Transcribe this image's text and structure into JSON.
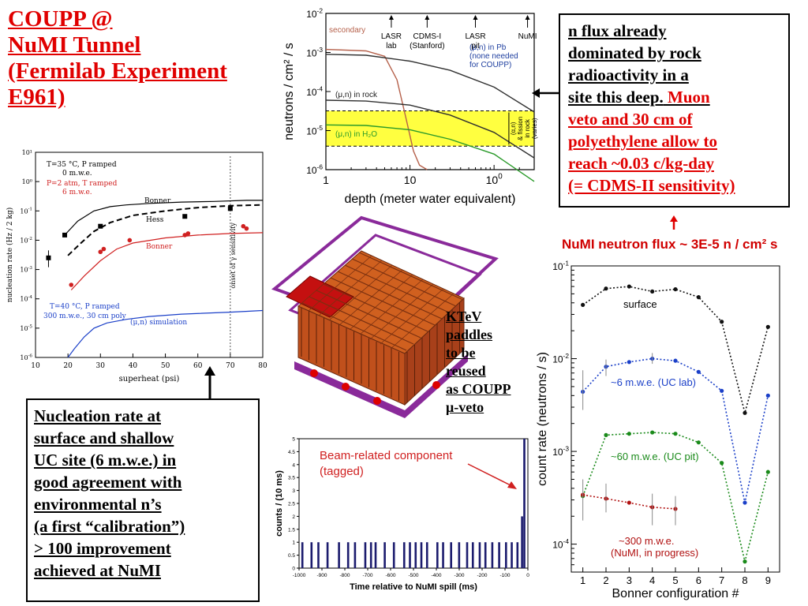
{
  "title": {
    "lines": [
      "COUPP @",
      "NuMI Tunnel",
      "(Fermilab Experiment",
      "E961)"
    ]
  },
  "top_right_box": {
    "black": [
      "n flux already",
      "dominated by rock",
      "radioactivity in a",
      "site this deep."
    ],
    "red_inline": "Muon",
    "red": [
      "veto and 30 cm of",
      "polyethylene allow to",
      "reach ~0.03 c/kg-day",
      "(= CDMS-II sensitivity)"
    ]
  },
  "bottom_left_box": {
    "lines": [
      "Nucleation rate at",
      "surface and shallow",
      "UC site (6 m.w.e.) in",
      "good agreement with",
      "environmental n’s",
      "(a first “calibration”)",
      "> 100 improvement",
      "achieved at NuMI"
    ]
  },
  "ktev_label": {
    "lines": [
      "KTeV",
      "paddles",
      "to be",
      "reused",
      "as COUPP",
      "μ-veto"
    ]
  },
  "numi_flux_title": "NuMI neutron flux ~ 3E-5 n / cm² s",
  "colors": {
    "title_red": "#e00000",
    "blue": "#1a3fc8",
    "green": "#1a8a1a",
    "darkred": "#b01010",
    "yellow": "#ffff40",
    "navy": "#1c1c6e"
  },
  "chart_data": [
    {
      "type": "line",
      "id": "depth",
      "xlabel": "depth (meter water equivalent)",
      "ylabel": "neutrons / cm² / s",
      "x_scale": "log",
      "y_scale": "log",
      "xlim": [
        1,
        300
      ],
      "ylim": [
        1e-06,
        0.01
      ],
      "x_ticks": [
        "1",
        "10",
        "100"
      ],
      "y_ticks": [
        "10-6",
        "10-5",
        "10-4",
        "10-3",
        "10-2"
      ],
      "band": {
        "from": 4e-06,
        "to": 3.2e-05
      },
      "markers": [
        {
          "label": "LASR lab",
          "lines": [
            "LASR",
            "lab"
          ],
          "x": 6
        },
        {
          "label": "CDMS-I (Stanford)",
          "lines": [
            "CDMS-I",
            "(Stanford)"
          ],
          "x": 16
        },
        {
          "label": "LASR pit",
          "lines": [
            "LASR",
            "pit"
          ],
          "x": 60
        },
        {
          "label": "NuMI",
          "lines": [
            "NuMI"
          ],
          "x": 250
        }
      ],
      "series": [
        {
          "name": "secondary",
          "color": "#b5604a",
          "x": [
            1,
            3,
            5,
            7,
            9,
            11,
            13,
            16
          ],
          "y": [
            0.0012,
            0.0011,
            0.0008,
            0.0002,
            2e-05,
            3e-06,
            1.3e-06,
            1e-06
          ]
        },
        {
          "name": "(μ,n) in Pb (none needed for COUPP)",
          "label_lines": [
            "(μ,n) in Pb",
            "(none needed",
            "for COUPP)"
          ],
          "color": "#303030",
          "x": [
            1,
            3,
            10,
            30,
            100,
            300
          ],
          "y": [
            0.0009,
            0.00085,
            0.0006,
            0.00035,
            0.00013,
            3e-05
          ]
        },
        {
          "name": "(μ,n) in rock",
          "color": "#303030",
          "x": [
            1,
            3,
            10,
            30,
            100,
            300
          ],
          "y": [
            6e-05,
            5.7e-05,
            4.5e-05,
            2.5e-05,
            9e-06,
            2e-06
          ]
        },
        {
          "name": "(μ,n) in H₂O",
          "color": "#2a9a2a",
          "x": [
            1,
            3,
            10,
            30,
            100,
            300
          ],
          "y": [
            1.4e-05,
            1.35e-05,
            1.05e-05,
            6e-06,
            2.5e-06,
            5e-07
          ]
        }
      ],
      "band_label": [
        "(α,n)",
        "& fission",
        "in rock",
        "(varies)"
      ]
    },
    {
      "type": "scatter",
      "id": "nucleation",
      "xlabel": "superheat (psi)",
      "ylabel": "nucleation rate (Hz / 2 kg)",
      "y_scale": "log",
      "xlim": [
        10,
        80
      ],
      "ylim": [
        1e-06,
        10
      ],
      "x_ticks": [
        "10",
        "20",
        "30",
        "40",
        "50",
        "60",
        "70",
        "80"
      ],
      "y_ticks": [
        "10-6",
        "10-5",
        "10-4",
        "10-3",
        "10-2",
        "10-1",
        "10⁰",
        "10¹"
      ],
      "vline": {
        "x": 70,
        "label": "onset of γ sensitivity"
      },
      "notes": {
        "black": [
          "T=35 °C, P ramped",
          "0 m.w.e."
        ],
        "red": [
          "P=2 atm, T ramped",
          "6 m.w.e."
        ],
        "blue": [
          "T=40 °C, P ramped",
          "300 m.w.e., 30 cm poly"
        ]
      },
      "series": [
        {
          "name": "Bonner",
          "color": "#000000",
          "style": "solid",
          "x": [
            19,
            23,
            28,
            33,
            38,
            45,
            55,
            65,
            75,
            80
          ],
          "y": [
            0.015,
            0.045,
            0.1,
            0.14,
            0.16,
            0.18,
            0.2,
            0.21,
            0.23,
            0.23
          ]
        },
        {
          "name": "Hess",
          "color": "#000000",
          "style": "dashed",
          "x": [
            20,
            24,
            28,
            33,
            40,
            50,
            60,
            70,
            80
          ],
          "y": [
            0.003,
            0.008,
            0.02,
            0.04,
            0.07,
            0.1,
            0.13,
            0.15,
            0.16
          ]
        },
        {
          "name": "Bonner",
          "color": "#d02020",
          "style": "solid",
          "x": [
            21,
            25,
            30,
            35,
            40,
            50,
            60,
            70,
            80
          ],
          "y": [
            0.0002,
            0.0006,
            0.002,
            0.005,
            0.008,
            0.012,
            0.015,
            0.017,
            0.018
          ]
        },
        {
          "name": "(μ,n) simulation",
          "color": "#1a3fc8",
          "style": "solid",
          "x": [
            20,
            22,
            25,
            28,
            32,
            38,
            45,
            55,
            70,
            80
          ],
          "y": [
            1e-06,
            2e-06,
            5e-06,
            1e-05,
            1.5e-05,
            2e-05,
            2.5e-05,
            3e-05,
            3.5e-05,
            4e-05
          ]
        },
        {
          "name": "0 m.w.e. data",
          "color": "#000000",
          "points": [
            [
              14,
              0.0025
            ],
            [
              19,
              0.015
            ],
            [
              30,
              0.03
            ],
            [
              56,
              0.065
            ],
            [
              70,
              0.12
            ]
          ]
        },
        {
          "name": "6 m.w.e. data",
          "color": "#d02020",
          "points": [
            [
              21,
              0.0003
            ],
            [
              30,
              0.004
            ],
            [
              31,
              0.005
            ],
            [
              39,
              0.01
            ],
            [
              56,
              0.015
            ],
            [
              57,
              0.017
            ],
            [
              74,
              0.03
            ],
            [
              75,
              0.025
            ]
          ]
        }
      ]
    },
    {
      "type": "bar",
      "id": "timing",
      "xlabel": "Time relative to NuMI spill (ms)",
      "ylabel": "counts / (10 ms)",
      "xlim": [
        -1000,
        0
      ],
      "ylim": [
        0,
        5
      ],
      "x_ticks": [
        "-1000",
        "-900",
        "-800",
        "-700",
        "-600",
        "-500",
        "-400",
        "-300",
        "-200",
        "-100",
        "0"
      ],
      "y_ticks": [
        "0",
        "0.5",
        "1",
        "1.5",
        "2",
        "2.5",
        "3",
        "3.5",
        "4",
        "4.5",
        "5"
      ],
      "annotation": [
        "Beam-related component",
        "(tagged)"
      ],
      "bins": [
        {
          "x": -990,
          "y": 1
        },
        {
          "x": -950,
          "y": 1
        },
        {
          "x": -920,
          "y": 1
        },
        {
          "x": -880,
          "y": 1
        },
        {
          "x": -830,
          "y": 1
        },
        {
          "x": -790,
          "y": 1
        },
        {
          "x": -760,
          "y": 1
        },
        {
          "x": -715,
          "y": 1
        },
        {
          "x": -690,
          "y": 1
        },
        {
          "x": -670,
          "y": 1
        },
        {
          "x": -630,
          "y": 1
        },
        {
          "x": -590,
          "y": 1
        },
        {
          "x": -545,
          "y": 1
        },
        {
          "x": -520,
          "y": 1
        },
        {
          "x": -495,
          "y": 1
        },
        {
          "x": -470,
          "y": 1
        },
        {
          "x": -445,
          "y": 1
        },
        {
          "x": -400,
          "y": 1
        },
        {
          "x": -375,
          "y": 1
        },
        {
          "x": -340,
          "y": 1
        },
        {
          "x": -305,
          "y": 1
        },
        {
          "x": -270,
          "y": 1
        },
        {
          "x": -245,
          "y": 1
        },
        {
          "x": -215,
          "y": 1
        },
        {
          "x": -190,
          "y": 1
        },
        {
          "x": -160,
          "y": 1
        },
        {
          "x": -130,
          "y": 1
        },
        {
          "x": -100,
          "y": 1
        },
        {
          "x": -75,
          "y": 1
        },
        {
          "x": -50,
          "y": 1
        },
        {
          "x": -30,
          "y": 2
        },
        {
          "x": -20,
          "y": 5
        }
      ]
    },
    {
      "type": "line",
      "id": "bonner",
      "xlabel": "Bonner configuration #",
      "ylabel": "count rate (neutrons / s)",
      "y_scale": "log",
      "xlim": [
        0.5,
        9.5
      ],
      "ylim": [
        5e-05,
        0.1
      ],
      "x_ticks": [
        "1",
        "2",
        "3",
        "4",
        "5",
        "6",
        "7",
        "8",
        "9"
      ],
      "y_ticks": [
        "10-4",
        "10-3",
        "10-2",
        "10-1"
      ],
      "series": [
        {
          "name": "surface",
          "color": "#111111",
          "x": [
            1,
            2,
            3,
            4,
            5,
            6,
            7,
            8,
            9
          ],
          "y": [
            0.038,
            0.057,
            0.06,
            0.053,
            0.056,
            0.046,
            0.025,
            0.0026,
            0.022
          ]
        },
        {
          "name": "~6 m.w.e. (UC lab)",
          "color": "#1a3fc8",
          "x": [
            1,
            2,
            3,
            4,
            5,
            6,
            7,
            8,
            9
          ],
          "y": [
            0.0044,
            0.0082,
            0.0092,
            0.01,
            0.0095,
            0.0072,
            0.0045,
            0.00028,
            0.004
          ]
        },
        {
          "name": "~60 m.w.e. (UC pit)",
          "color": "#1a8a1a",
          "x": [
            1,
            2,
            3,
            4,
            5,
            6,
            7,
            8,
            9
          ],
          "y": [
            0.00033,
            0.0015,
            0.00155,
            0.0016,
            0.00155,
            0.00125,
            0.00075,
            6.5e-05,
            0.0006
          ]
        },
        {
          "name": "~300 m.w.e. (NuMI, in progress)",
          "label_lines": [
            "~300 m.w.e.",
            "(NuMI, in progress)"
          ],
          "color": "#b01010",
          "x": [
            1,
            2,
            3,
            4,
            5
          ],
          "y": [
            0.00034,
            0.00031,
            0.00028,
            0.00025,
            0.00024
          ]
        }
      ]
    }
  ]
}
